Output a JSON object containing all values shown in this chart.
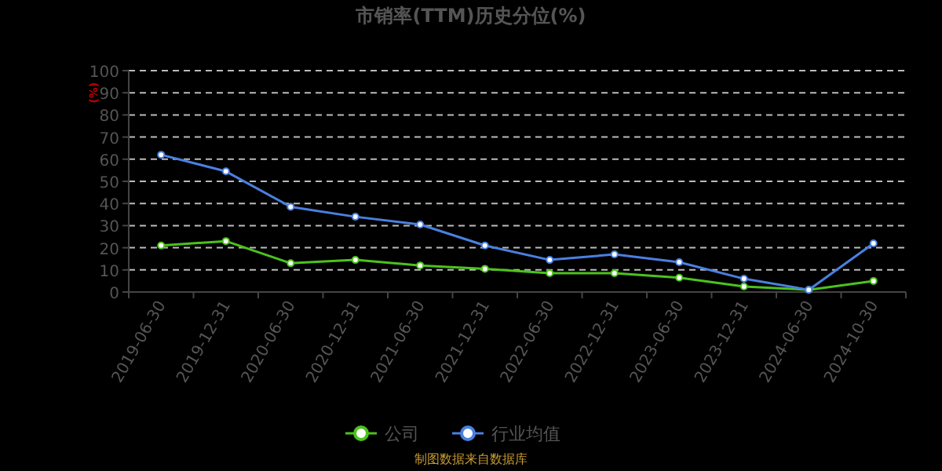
{
  "chart_data": {
    "type": "line",
    "title": "市销率(TTM)历史分位(%)",
    "ylabel": "(%)",
    "categories": [
      "2019-06-30",
      "2019-12-31",
      "2020-06-30",
      "2020-12-31",
      "2021-06-30",
      "2021-12-31",
      "2022-06-30",
      "2022-12-31",
      "2023-06-30",
      "2023-12-31",
      "2024-06-30",
      "2024-10-30"
    ],
    "series": [
      {
        "name": "公司",
        "color": "#4cc21c",
        "values": [
          21,
          23,
          13,
          14.5,
          12,
          10.5,
          8.5,
          8.5,
          6.5,
          2.5,
          1,
          5
        ]
      },
      {
        "name": "行业均值",
        "color": "#4a80e0",
        "values": [
          62,
          54.5,
          38.5,
          34,
          30.5,
          21,
          14.5,
          17,
          13.5,
          6,
          1,
          22
        ]
      }
    ],
    "ylim": [
      0,
      100
    ],
    "yticks": [
      0,
      10,
      20,
      30,
      40,
      50,
      60,
      70,
      80,
      90,
      100
    ],
    "grid": "y",
    "legend": "bottom",
    "marker": "circle",
    "annotations": [
      "制图数据来自数据库"
    ]
  }
}
